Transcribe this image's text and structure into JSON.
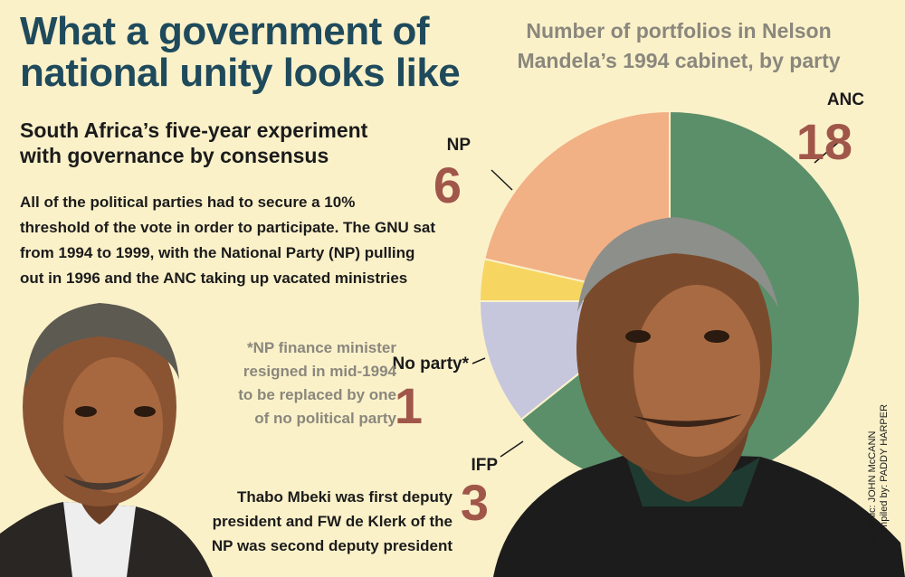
{
  "header": {
    "title_line1": "What a government of",
    "title_line2": "national unity looks like",
    "subtitle_line1": "South Africa’s five-year experiment",
    "subtitle_line2": "with governance by consensus"
  },
  "intro": {
    "line1": "All of the political parties had to secure a 10%",
    "line2": "threshold of the vote  in order to participate. The GNU sat",
    "line3": "from 1994 to 1999, with the National Party (NP) pulling",
    "line4": "out in 1996 and the ANC taking up vacated ministries"
  },
  "footnote": {
    "line1": "*NP finance minister",
    "line2": "resigned in mid-1994",
    "line3": "to be replaced by one",
    "line4": "of no political party"
  },
  "caption": {
    "line1": "Thabo Mbeki was first deputy",
    "line2": "president and FW de Klerk of the",
    "line3": "NP was second deputy president"
  },
  "credits": {
    "graphic": "Graphic: JOHN McCANN",
    "compiled": "Compiled by: PADDY HARPER"
  },
  "colors": {
    "title": "#1e4a5c",
    "grey_text": "#8a877d",
    "value_text": "#a0574a",
    "background": "#fbf1c9"
  },
  "chart_data": {
    "type": "pie",
    "title_line1": "Number of portfolios in Nelson",
    "title_line2": "Mandela’s 1994 cabinet, by party",
    "slices": [
      {
        "label": "ANC",
        "value": 18,
        "color": "#5b8f6a"
      },
      {
        "label": "IFP",
        "value": 3,
        "color": "#c6c7dd"
      },
      {
        "label": "No party*",
        "value": 1,
        "color": "#f6d561"
      },
      {
        "label": "NP",
        "value": 6,
        "color": "#f2b085"
      }
    ]
  }
}
